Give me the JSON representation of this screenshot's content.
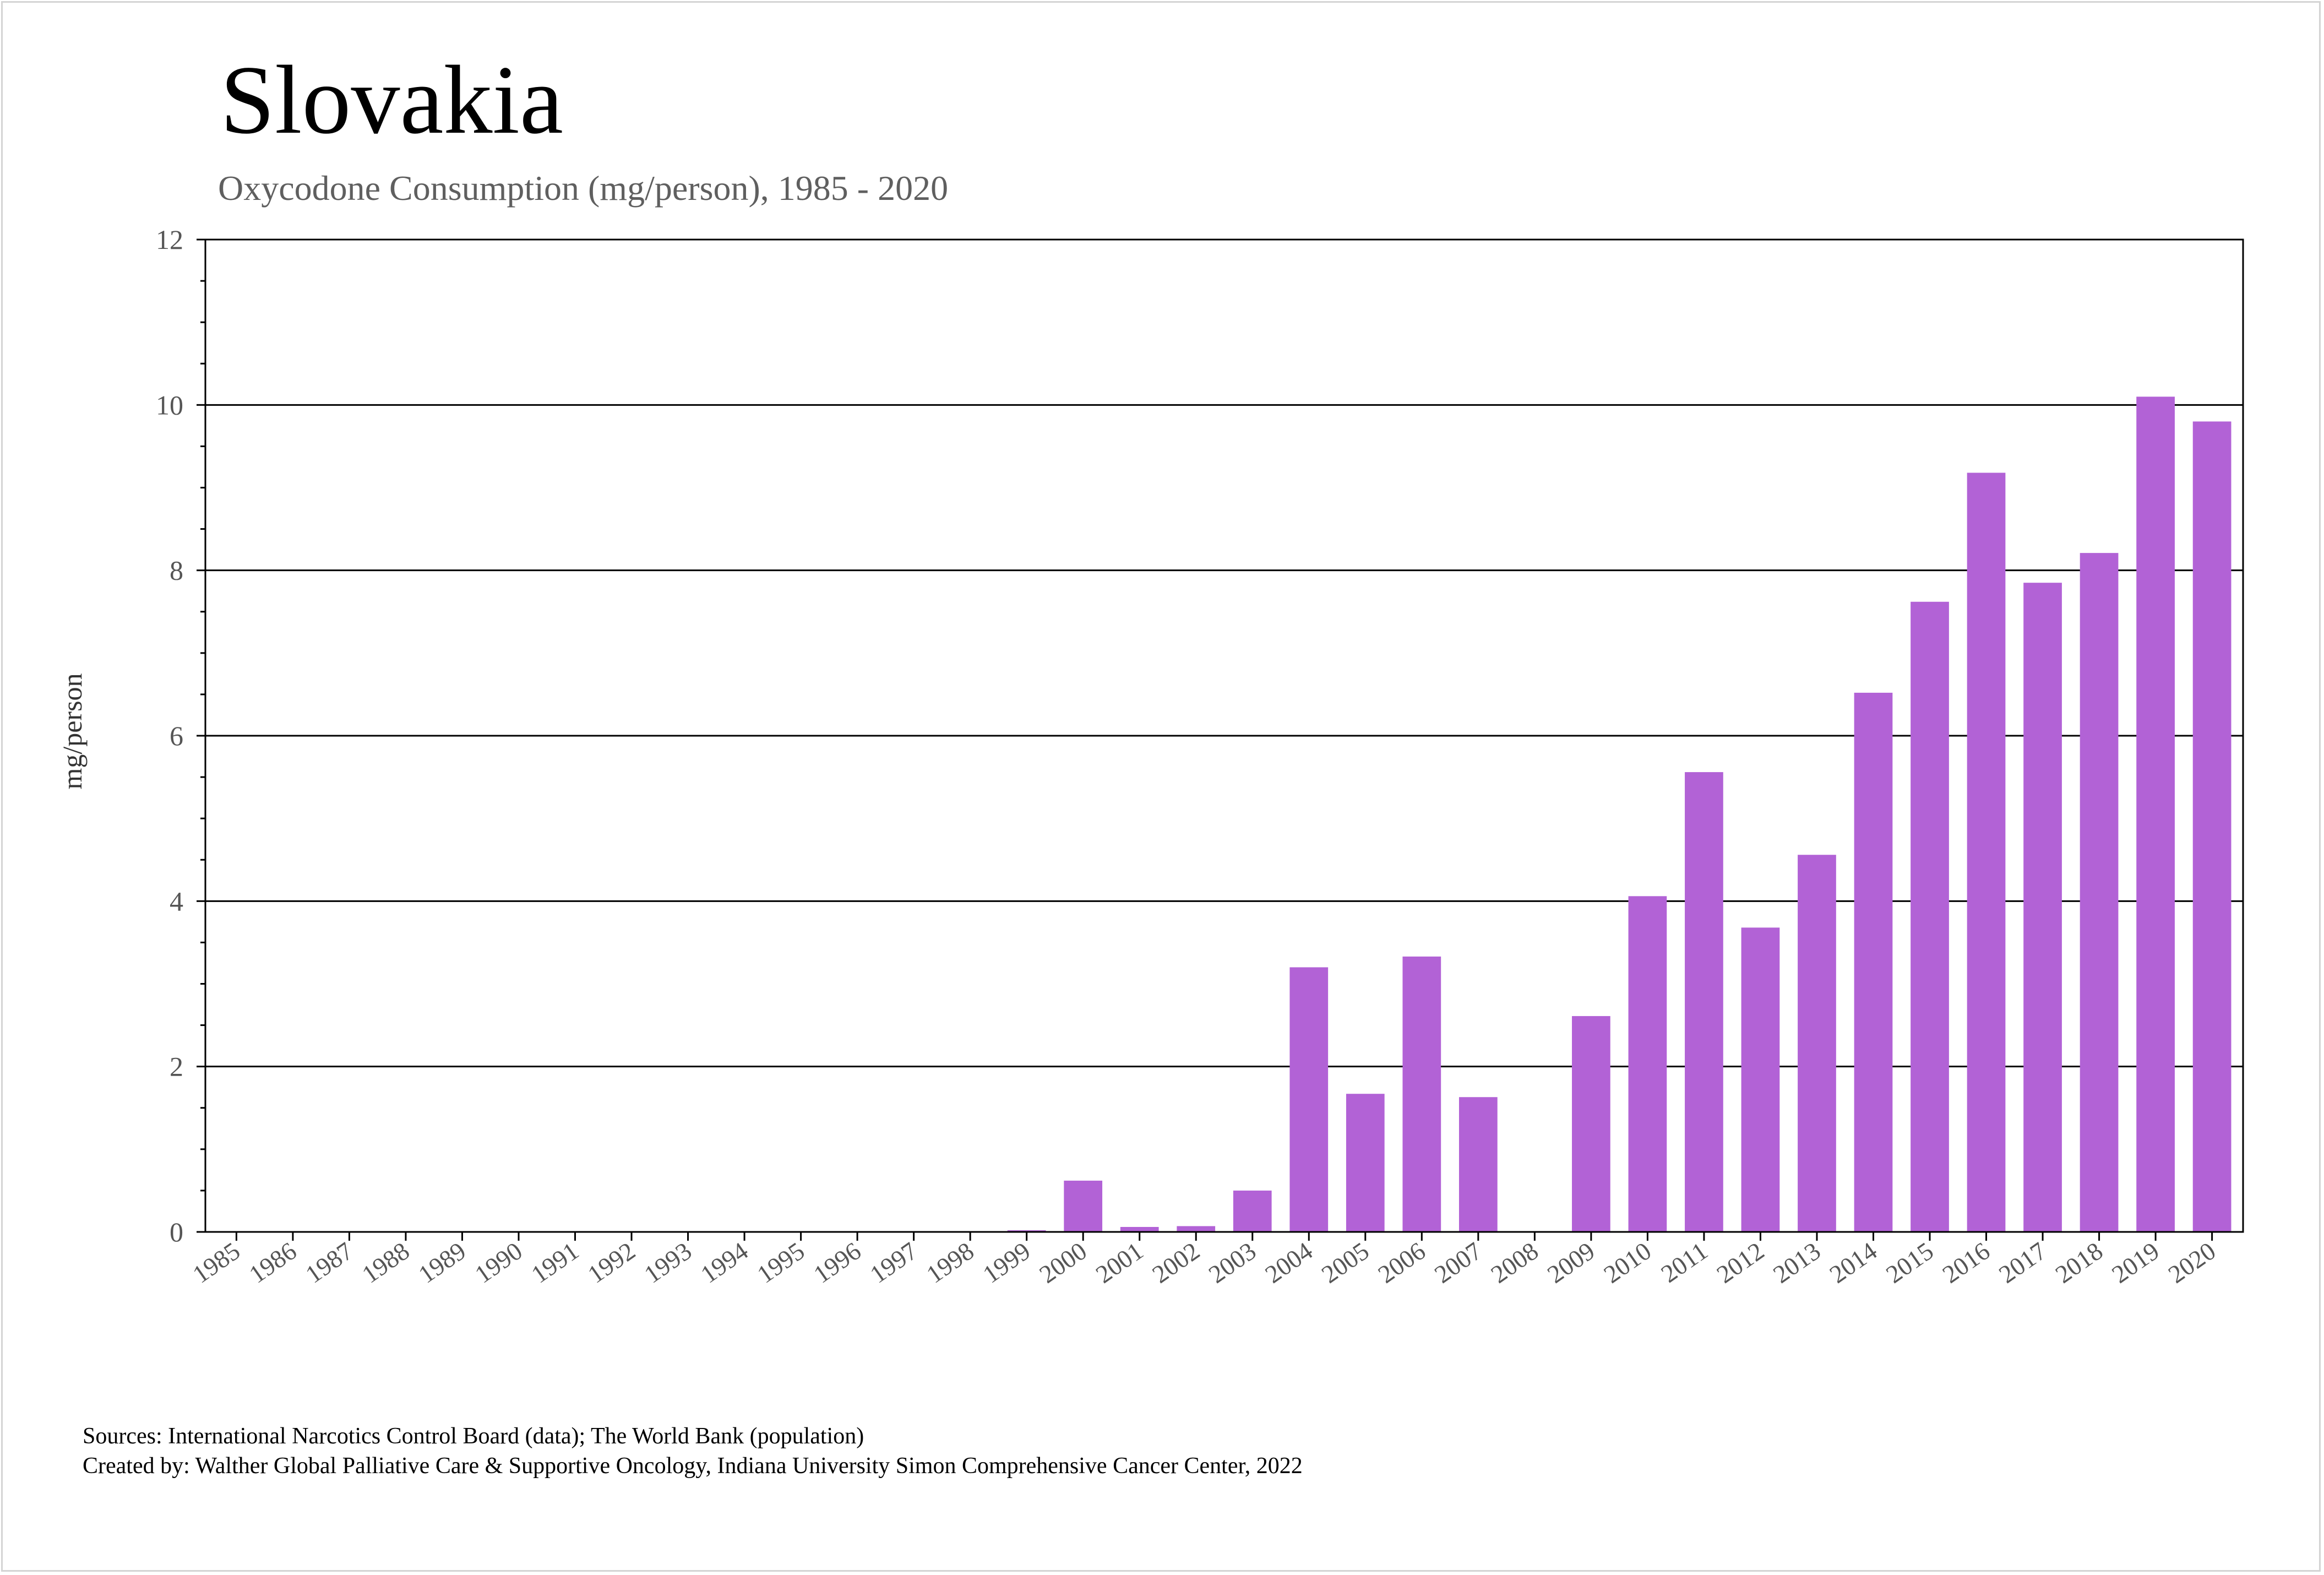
{
  "title": "Slovakia",
  "subtitle": "Oxycodone Consumption (mg/person), 1985 - 2020",
  "footer": {
    "sources": "Sources: International Narcotics Control Board (data); The World Bank (population)",
    "created_by": "Created by: Walther Global Palliative Care & Supportive Oncology, Indiana University Simon Comprehensive Cancer Center, 2022"
  },
  "colors": {
    "bar": "#b262d6",
    "axis": "#000000",
    "tick_text": "#555555"
  },
  "chart_data": {
    "type": "bar",
    "title": "Slovakia",
    "subtitle": "Oxycodone Consumption (mg/person), 1985 - 2020",
    "xlabel": "",
    "ylabel": "mg/person",
    "ylim": [
      0,
      12
    ],
    "yticks": [
      "0",
      "2",
      "4",
      "6",
      "8",
      "10",
      "12"
    ],
    "grid": "horizontal major",
    "legend": "none",
    "categories": [
      "1985",
      "1986",
      "1987",
      "1988",
      "1989",
      "1990",
      "1991",
      "1992",
      "1993",
      "1994",
      "1995",
      "1996",
      "1997",
      "1998",
      "1999",
      "2000",
      "2001",
      "2002",
      "2003",
      "2004",
      "2005",
      "2006",
      "2007",
      "2008",
      "2009",
      "2010",
      "2011",
      "2012",
      "2013",
      "2014",
      "2015",
      "2016",
      "2017",
      "2018",
      "2019",
      "2020"
    ],
    "values": [
      0,
      0,
      0,
      0,
      0,
      0,
      0,
      0,
      0,
      0.01,
      0,
      0,
      0,
      0.01,
      0.02,
      0.62,
      0.06,
      0.07,
      0.5,
      3.2,
      1.67,
      3.33,
      1.63,
      0,
      2.61,
      4.06,
      5.56,
      3.68,
      4.56,
      6.52,
      7.62,
      9.18,
      7.85,
      8.21,
      10.1,
      9.8
    ]
  }
}
